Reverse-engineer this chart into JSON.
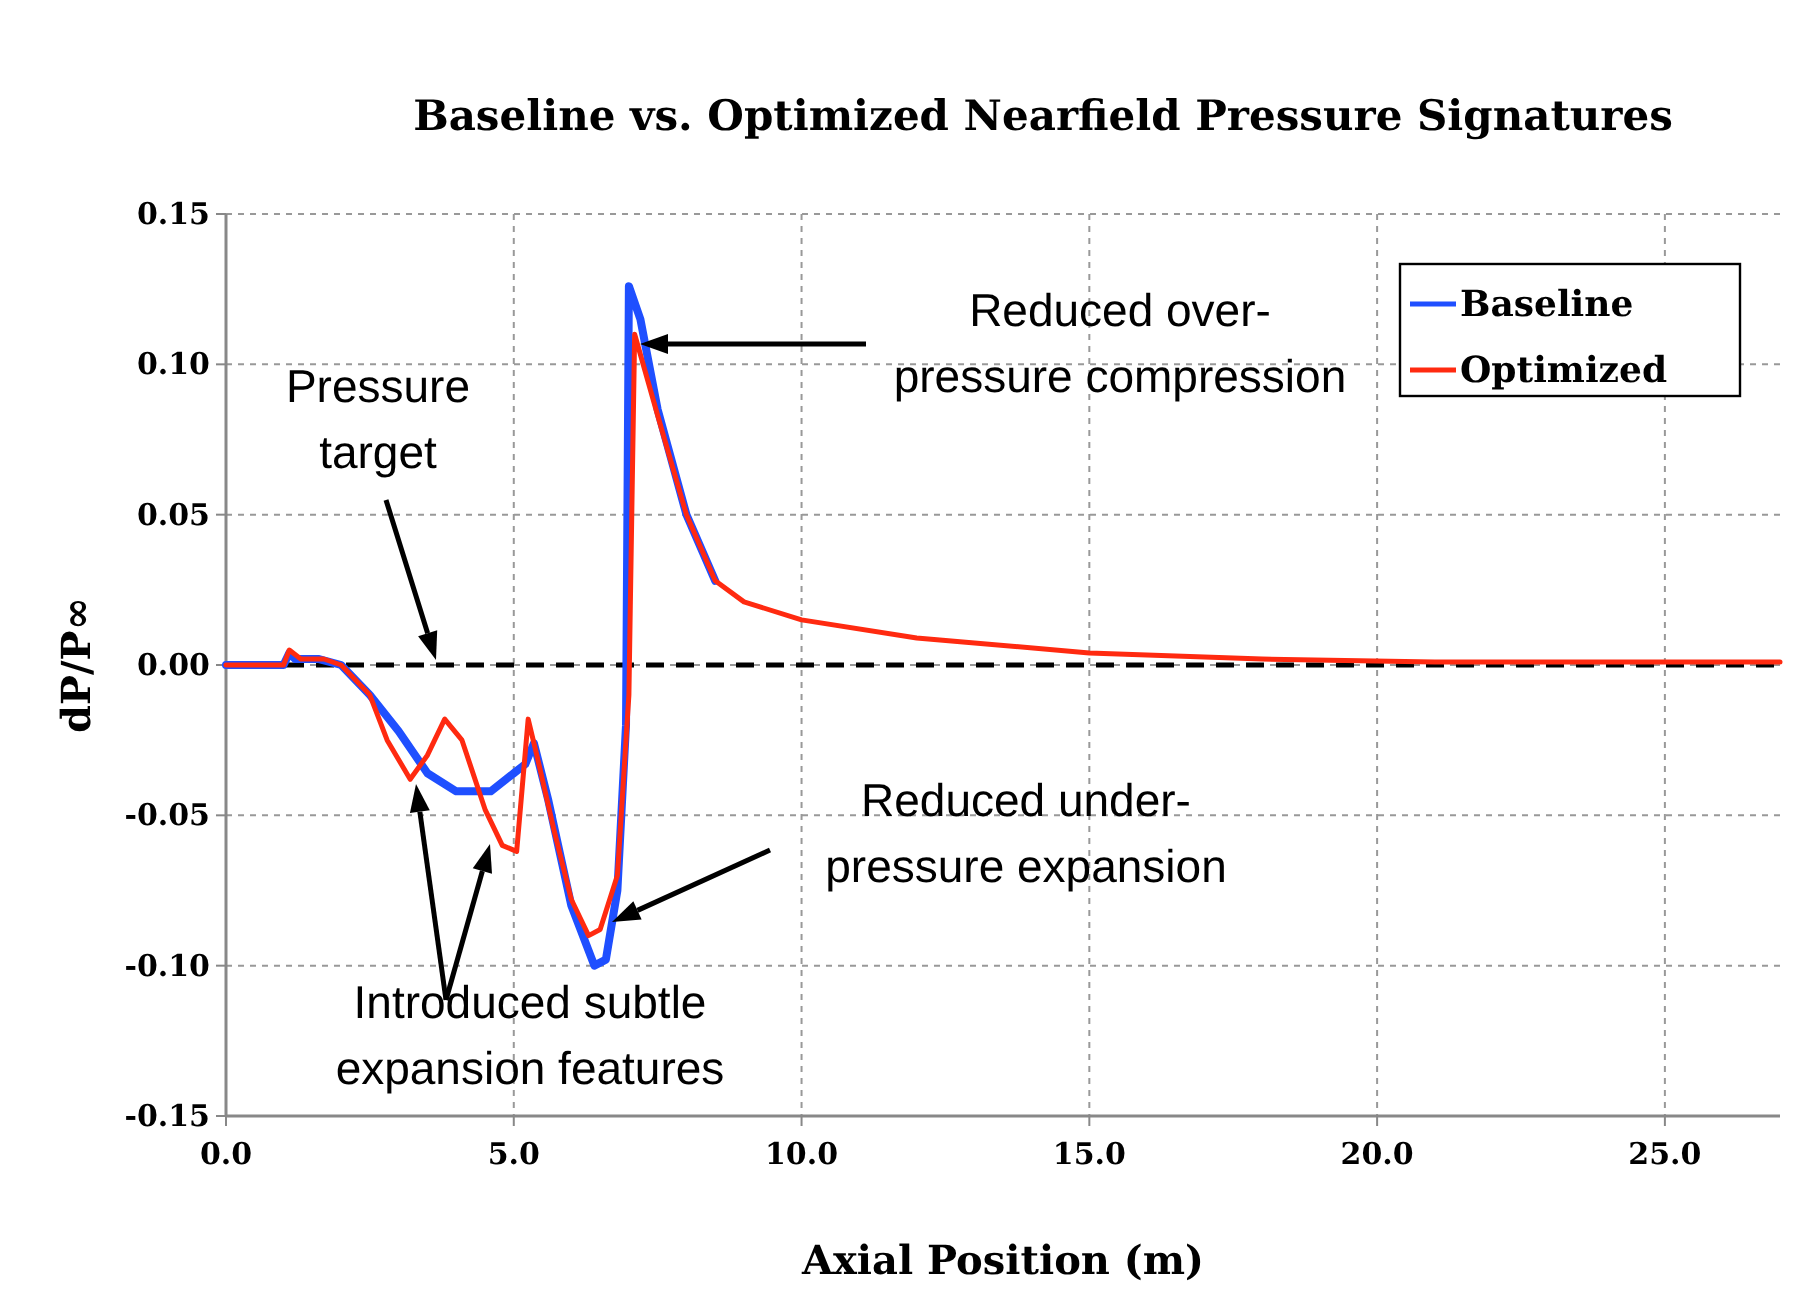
{
  "chart_data": {
    "type": "line",
    "title": "Baseline vs. Optimized Nearfield Pressure Signatures",
    "xlabel": "Axial Position (m)",
    "ylabel": "dP/P∞",
    "xlim": [
      0,
      27
    ],
    "ylim": [
      -0.15,
      0.15
    ],
    "xticks": [
      {
        "value": 0,
        "label": "0.0"
      },
      {
        "value": 5,
        "label": "5.0"
      },
      {
        "value": 10,
        "label": "10.0"
      },
      {
        "value": 15,
        "label": "15.0"
      },
      {
        "value": 20,
        "label": "20.0"
      },
      {
        "value": 25,
        "label": "25.0"
      }
    ],
    "yticks": [
      {
        "value": -0.15,
        "label": "-0.15"
      },
      {
        "value": -0.1,
        "label": "-0.10"
      },
      {
        "value": -0.05,
        "label": "-0.05"
      },
      {
        "value": 0,
        "label": "0.00"
      },
      {
        "value": 0.05,
        "label": "0.05"
      },
      {
        "value": 0.1,
        "label": "0.10"
      },
      {
        "value": 0.15,
        "label": "0.15"
      }
    ],
    "grid": true,
    "legend": "top right",
    "line_style": "solid",
    "series": [
      {
        "name": "Baseline",
        "color": "#1f4fff",
        "x": [
          0,
          1,
          1.1,
          1.2,
          1.6,
          2,
          2.5,
          3,
          3.5,
          4,
          4.6,
          5,
          5.2,
          5.35,
          5.6,
          6,
          6.4,
          6.6,
          6.8,
          6.95,
          7,
          7.2,
          7.5,
          8,
          8.5
        ],
        "values": [
          0,
          0,
          0.004,
          0.002,
          0.002,
          0,
          -0.01,
          -0.022,
          -0.036,
          -0.042,
          -0.042,
          -0.036,
          -0.033,
          -0.026,
          -0.045,
          -0.08,
          -0.1,
          -0.098,
          -0.075,
          -0.02,
          0.126,
          0.115,
          0.085,
          0.05,
          0.028
        ]
      },
      {
        "name": "Optimized",
        "color": "#ff2a10",
        "x": [
          0,
          1,
          1.1,
          1.3,
          1.7,
          2,
          2.5,
          2.8,
          3.2,
          3.5,
          3.8,
          4.1,
          4.5,
          4.8,
          5.05,
          5.15,
          5.25,
          5.4,
          5.7,
          6,
          6.3,
          6.5,
          6.8,
          7,
          7.1,
          7.5,
          8,
          8.5,
          9,
          10,
          12,
          15,
          18,
          21,
          27
        ],
        "values": [
          0,
          0,
          0.005,
          0.002,
          0.002,
          0,
          -0.01,
          -0.025,
          -0.038,
          -0.03,
          -0.018,
          -0.025,
          -0.048,
          -0.06,
          -0.062,
          -0.04,
          -0.018,
          -0.03,
          -0.055,
          -0.078,
          -0.09,
          -0.088,
          -0.07,
          -0.01,
          0.11,
          0.083,
          0.05,
          0.028,
          0.021,
          0.015,
          0.009,
          0.004,
          0.002,
          0.001,
          0.001
        ]
      }
    ],
    "ref_lines": [
      {
        "axis": "y",
        "value": 0,
        "color": "#000000",
        "line_style": "dashed"
      }
    ],
    "annotations": [
      "Pressure target",
      "Reduced over-pressure compression",
      "Reduced under-pressure expansion",
      "Introduced subtle expansion features"
    ]
  }
}
